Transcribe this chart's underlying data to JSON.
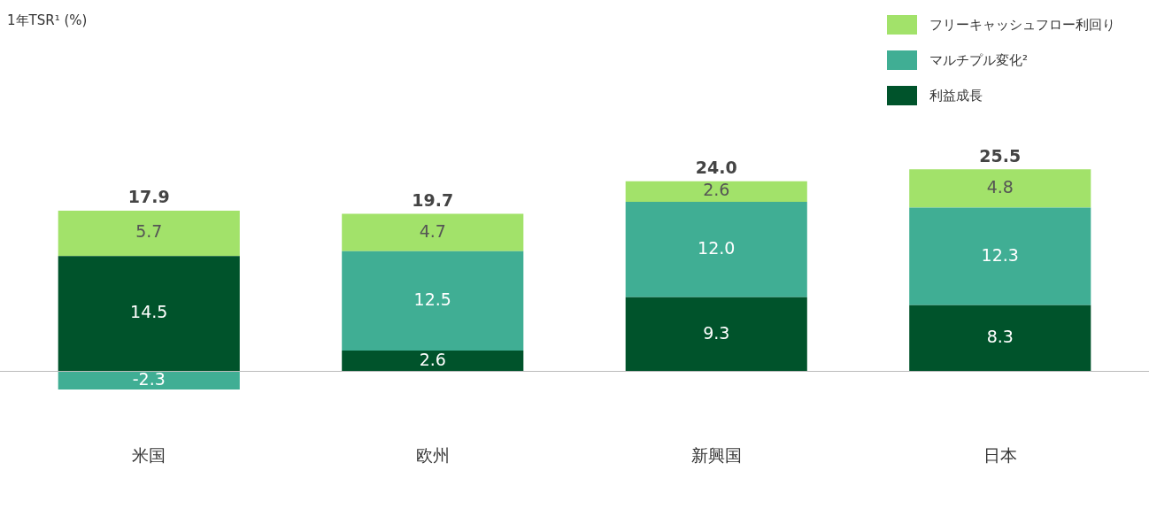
{
  "chart_data": {
    "type": "bar",
    "stacked": true,
    "annotations": [
      "1年TSR¹ (%)"
    ],
    "categories": [
      "米国",
      "欧州",
      "新興国",
      "日本"
    ],
    "series": [
      {
        "name": "利益成長",
        "color": "#00532b",
        "values": [
          14.5,
          2.6,
          9.3,
          8.3
        ],
        "value_labels": [
          "14.5",
          "2.6",
          "9.3",
          "8.3"
        ]
      },
      {
        "name": "マルチプル変化²",
        "color": "#40ae94",
        "values": [
          -2.3,
          12.5,
          12.0,
          12.3
        ],
        "value_labels": [
          "-2.3",
          "12.5",
          "12.0",
          "12.3"
        ]
      },
      {
        "name": "フリーキャッシュフロー利回り",
        "color": "#a2e26a",
        "values": [
          5.7,
          4.7,
          2.6,
          4.8
        ],
        "value_labels": [
          "5.7",
          "4.7",
          "2.6",
          "4.8"
        ]
      }
    ],
    "totals": [
      "17.9",
      "19.7",
      "24.0",
      "25.5"
    ],
    "legend": "top right",
    "grid": false,
    "tick_labels": "x"
  }
}
